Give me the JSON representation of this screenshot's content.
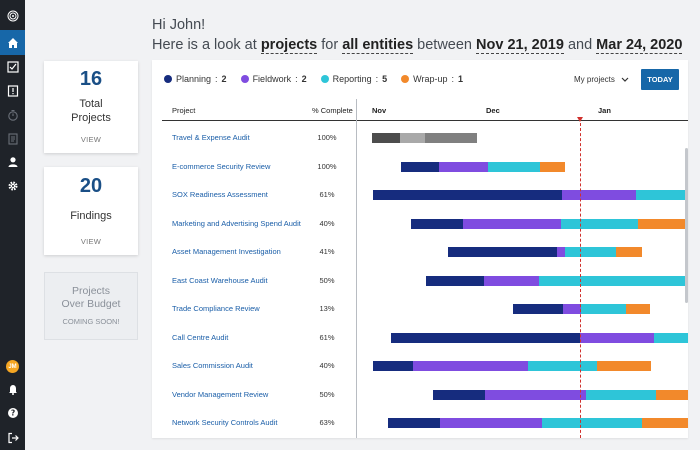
{
  "greeting": {
    "hello": "Hi John!",
    "prefix": "Here is a look at",
    "subject": "projects",
    "for_text": "for",
    "scope": "all entities",
    "between_text": "between",
    "start_date": "Nov 21, 2019",
    "and_text": "and",
    "end_date": "Mar 24, 2020"
  },
  "sidebar": {
    "avatar_initials": "JM",
    "items": [
      "home-icon",
      "checklist-icon",
      "audit-icon",
      "timer-icon",
      "document-icon",
      "user-icon",
      "gear-icon",
      "bell-icon",
      "help-icon",
      "logout-icon"
    ]
  },
  "cards": {
    "total": {
      "number": "16",
      "label1": "Total",
      "label2": "Projects",
      "view": "VIEW"
    },
    "findings": {
      "number": "20",
      "label": "Findings",
      "view": "VIEW"
    },
    "budget": {
      "label1": "Projects",
      "label2": "Over Budget",
      "status": "COMING SOON!"
    }
  },
  "legend": [
    {
      "name": "Planning",
      "count": "2",
      "color": "#162c7e"
    },
    {
      "name": "Fieldwork",
      "count": "2",
      "color": "#7f4ce0"
    },
    {
      "name": "Reporting",
      "count": "5",
      "color": "#2ec5d8"
    },
    {
      "name": "Wrap-up",
      "count": "1",
      "color": "#f2892b"
    }
  ],
  "filter": {
    "label": "My projects",
    "today_button": "TODAY"
  },
  "columns": {
    "project": "Project",
    "complete": "% Complete"
  },
  "months": [
    "Nov",
    "Dec",
    "Jan"
  ],
  "projects": [
    {
      "name": "Travel & Expense Audit",
      "pct": "100%"
    },
    {
      "name": "E-commerce Security Review",
      "pct": "100%"
    },
    {
      "name": "SOX Readiness Assessment",
      "pct": "61%"
    },
    {
      "name": "Marketing and Advertising Spend Audit",
      "pct": "40%"
    },
    {
      "name": "Asset Management Investigation",
      "pct": "41%"
    },
    {
      "name": "East Coast Warehouse Audit",
      "pct": "50%"
    },
    {
      "name": "Trade Compliance Review",
      "pct": "13%"
    },
    {
      "name": "Call Centre Audit",
      "pct": "61%"
    },
    {
      "name": "Sales Commission Audit",
      "pct": "40%"
    },
    {
      "name": "Vendor Management Review",
      "pct": "50%"
    },
    {
      "name": "Network Security Controls Audit",
      "pct": "63%"
    }
  ]
}
